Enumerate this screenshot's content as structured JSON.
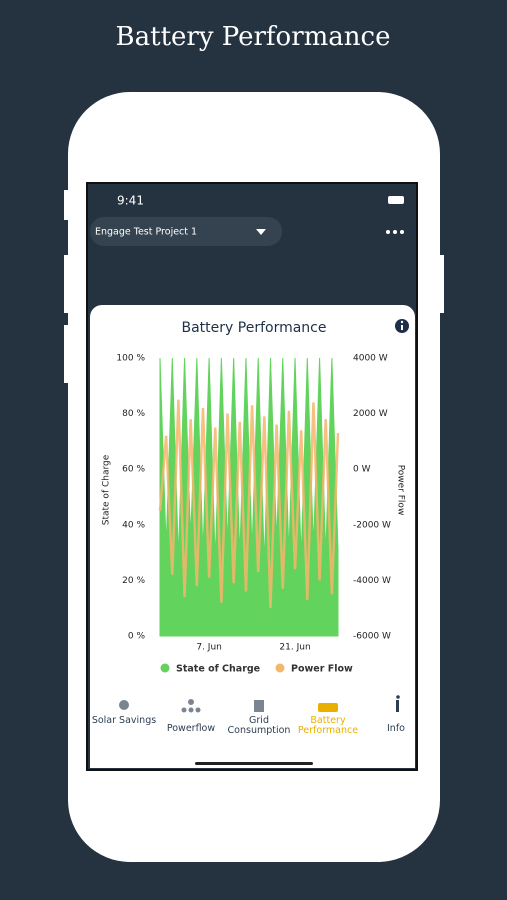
{
  "header": {
    "title": "Battery Performance"
  },
  "status_bar": {
    "time": "9:41"
  },
  "project": {
    "name": "Engage Test Project 1"
  },
  "chart_data": {
    "type": "area",
    "title": "Battery Performance",
    "categories": [
      null,
      null,
      null,
      null,
      null,
      null,
      null,
      null,
      "7. Jun",
      null,
      null,
      null,
      null,
      null,
      null,
      null,
      null,
      null,
      null,
      null,
      null,
      null,
      "21. Jun",
      null,
      null,
      null,
      null,
      null,
      null,
      null
    ],
    "series": [
      {
        "name": "State of Charge",
        "color": "#62d35c",
        "values": [
          100,
          32,
          100,
          28,
          100,
          35,
          100,
          30,
          100,
          27,
          100,
          33,
          100,
          29,
          100,
          31,
          100,
          26,
          100,
          34,
          100,
          30,
          100,
          28,
          100,
          32,
          100,
          29,
          100,
          31
        ]
      },
      {
        "name": "Power Flow",
        "color": "#f5b56b",
        "axis": "y2",
        "values": [
          -1500,
          1200,
          -3800,
          2500,
          -4600,
          1800,
          -4200,
          2200,
          -3900,
          1500,
          -4800,
          2000,
          -4100,
          1700,
          -4400,
          2300,
          -3700,
          1900,
          -5000,
          1600,
          -4300,
          2100,
          -3600,
          1400,
          -4700,
          2400,
          -4000,
          1800,
          -4500,
          1300
        ]
      }
    ],
    "ylabel": "State of Charge",
    "y2label": "Power Flow",
    "ylim": [
      0,
      100
    ],
    "yticks": [
      {
        "value": 0,
        "label": "0 %"
      },
      {
        "value": 20,
        "label": "20 %"
      },
      {
        "value": 40,
        "label": "40 %"
      },
      {
        "value": 60,
        "label": "60 %"
      },
      {
        "value": 80,
        "label": "80 %"
      },
      {
        "value": 100,
        "label": "100 %"
      }
    ],
    "y2lim": [
      -6000,
      4000
    ],
    "y2ticks": [
      {
        "value": -6000,
        "label": "-6000 W"
      },
      {
        "value": -4000,
        "label": "-4000 W"
      },
      {
        "value": -2000,
        "label": "-2000 W"
      },
      {
        "value": 0,
        "label": "0 W"
      },
      {
        "value": 2000,
        "label": "2000 W"
      },
      {
        "value": 4000,
        "label": "4000 W"
      }
    ]
  },
  "nav": [
    {
      "label": "Solar Savings"
    },
    {
      "label": "Powerflow"
    },
    {
      "label": "Grid Consumption"
    },
    {
      "label": "Battery Performance"
    },
    {
      "label": "Info"
    }
  ]
}
